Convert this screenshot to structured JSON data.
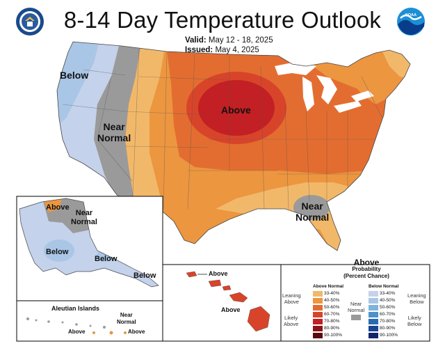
{
  "title": "8-14 Day Temperature Outlook",
  "valid_label": "Valid:",
  "valid_value": "May 12 - 18, 2025",
  "issued_label": "Issued:",
  "issued_value": "May 4, 2025",
  "logos": {
    "left": "us-department-of-commerce-seal",
    "right": "noaa-logo",
    "right_text": "NOAA"
  },
  "colors": {
    "above_33_40": "#f2b86a",
    "above_40_50": "#ec9640",
    "above_50_60": "#e36d30",
    "above_60_70": "#d8442a",
    "above_70_80": "#c22024",
    "above_80_90": "#8c1418",
    "above_90_100": "#5a0a0c",
    "near_normal": "#9a9a9a",
    "below_33_40": "#c4d2ec",
    "below_40_50": "#a9c6e6",
    "below_50_60": "#7fb2dd",
    "below_60_70": "#4f91cb",
    "below_70_80": "#2a6cb0",
    "below_80_90": "#1a4590",
    "below_90_100": "#10256a"
  },
  "map_labels": {
    "below_west": "Below",
    "near_normal_west_1": "Near",
    "near_normal_west_2": "Normal",
    "above_center": "Above",
    "near_normal_southeast_1": "Near",
    "near_normal_southeast_2": "Normal"
  },
  "alaska_labels": {
    "above": "Above",
    "near_normal_1": "Near",
    "near_normal_2": "Normal",
    "below_west": "Below",
    "below_south": "Below",
    "below_panhandle": "Below"
  },
  "aleutian_labels": {
    "title": "Aleutian Islands",
    "near_normal_1": "Near",
    "near_normal_2": "Normal",
    "above_1": "Above",
    "above_2": "Above"
  },
  "hawaii_labels": {
    "above_1": "Above",
    "above_2": "Above"
  },
  "legend": {
    "title": "Above",
    "subtitle_1": "Probability",
    "subtitle_2": "(Percent Chance)",
    "above_header": "Above Normal",
    "below_header": "Below Normal",
    "ranges": [
      "33-40%",
      "40-50%",
      "50-60%",
      "60-70%",
      "70-80%",
      "80-90%",
      "90-100%"
    ],
    "leaning_above_1": "Leaning",
    "leaning_above_2": "Above",
    "likely_above_1": "Likely",
    "likely_above_2": "Above",
    "leaning_below_1": "Leaning",
    "leaning_below_2": "Below",
    "likely_below_1": "Likely",
    "likely_below_2": "Below",
    "near_1": "Near",
    "near_2": "Normal"
  }
}
